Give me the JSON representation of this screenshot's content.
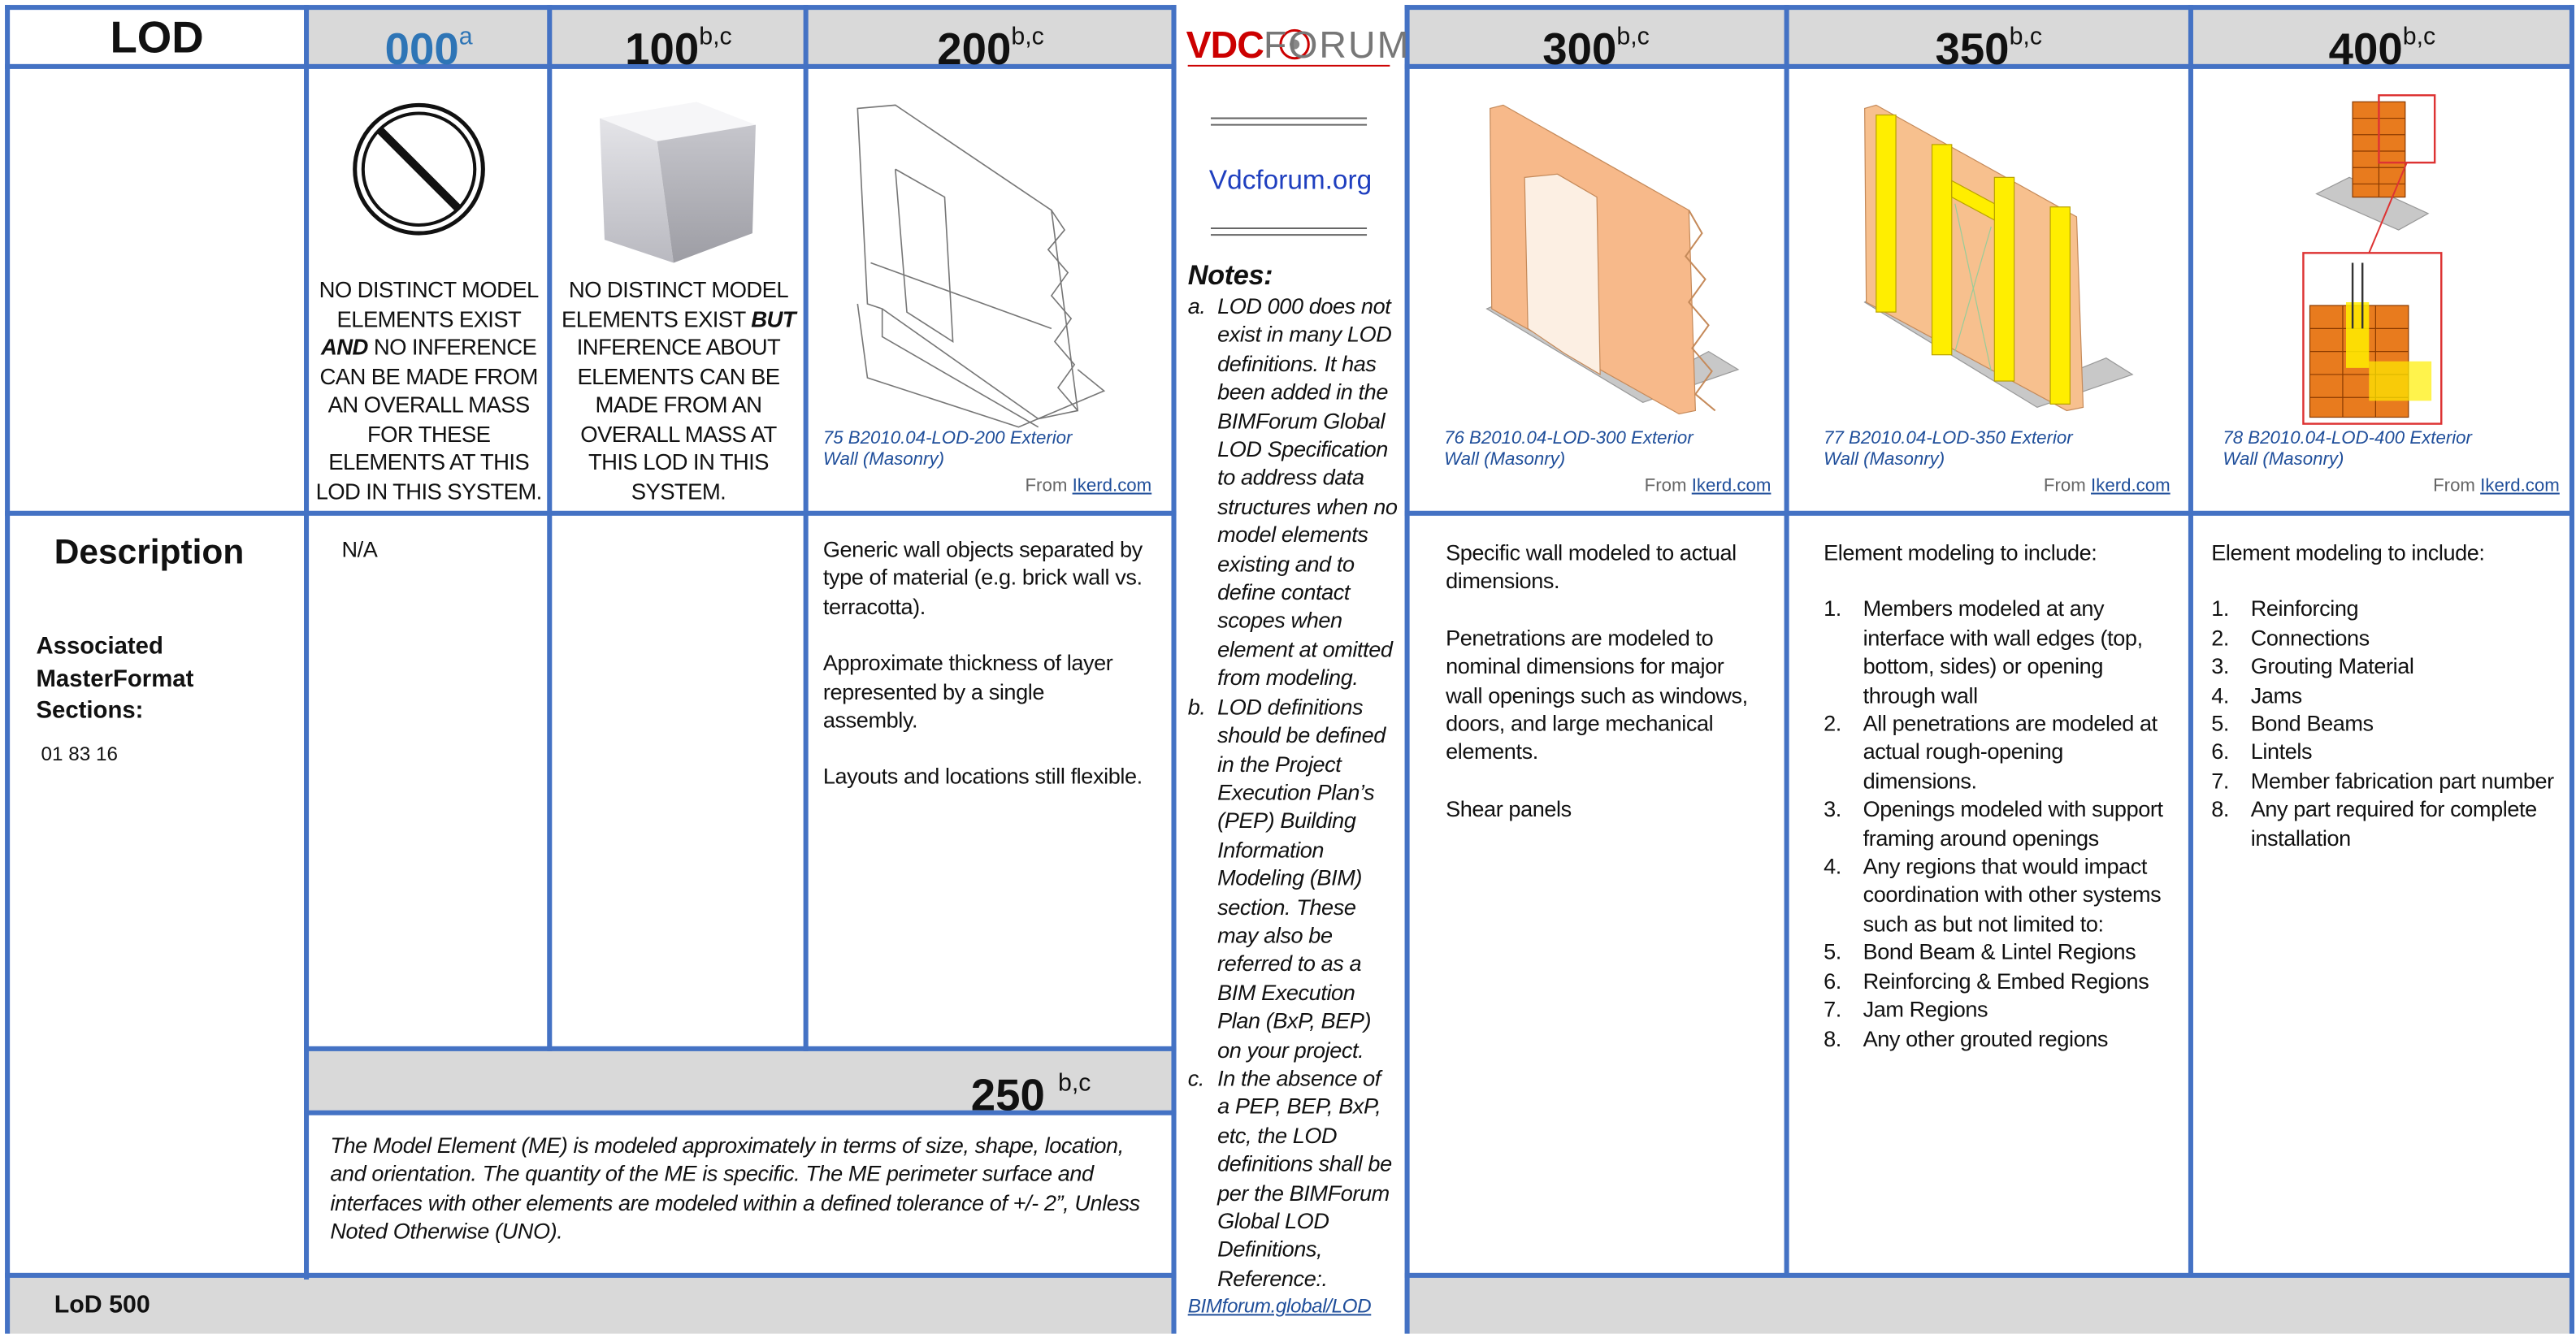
{
  "corner": "LOD",
  "row_labels": {
    "description": "Description",
    "sections_label": "Associated MasterFormat Sections:",
    "sections_value": "01 83 16"
  },
  "levels": [
    {
      "level": "000",
      "sup": "a",
      "summary": {
        "before": "NO DISTINCT MODEL ELEMENTS EXIST",
        "emphasis": "AND",
        "after": "NO INFERENCE CAN BE MADE FROM AN OVERALL MASS FOR THESE ELEMENTS AT THIS LOD IN THIS SYSTEM."
      },
      "description": [
        "N/A"
      ]
    },
    {
      "level": "100",
      "sup": "b,c",
      "summary": {
        "before": "NO DISTINCT MODEL ELEMENTS EXIST",
        "emphasis": "BUT",
        "after": "INFERENCE ABOUT ELEMENTS CAN BE MADE FROM AN OVERALL MASS AT THIS LOD IN THIS SYSTEM."
      }
    },
    {
      "level": "200",
      "sup": "b,c",
      "caption": "75 B2010.04-LOD-200 Exterior Wall (Masonry)",
      "source": "From",
      "source_link": "Ikerd.com",
      "description": [
        "Generic wall objects separated by type of material (e.g. brick wall vs. terracotta).",
        "Approximate thickness of layer represented by a single assembly.",
        "Layouts and locations still flexible."
      ]
    },
    {
      "level": "250",
      "sup": "b,c",
      "description": "The Model Element (ME) is modeled approximately in terms of size, shape, location, and orientation. The quantity of the ME is specific. The ME perimeter surface and interfaces with other elements are modeled within a defined tolerance of +/- 2”, Unless Noted Otherwise (UNO)."
    },
    {
      "level": "300",
      "sup": "b,c",
      "caption": "76 B2010.04-LOD-300 Exterior Wall (Masonry)",
      "source": "From",
      "source_link": "Ikerd.com",
      "description": [
        "Specific wall modeled to actual dimensions.",
        "Penetrations are modeled to nominal dimensions for major wall openings such as windows, doors, and large mechanical elements.",
        "Shear panels"
      ]
    },
    {
      "level": "350",
      "sup": "b,c",
      "caption": "77 B2010.04-LOD-350 Exterior Wall (Masonry)",
      "source": "From",
      "source_link": "Ikerd.com",
      "intro": "Element modeling to include:",
      "items": [
        {
          "num": "1.",
          "text": "Members modeled at any interface with wall edges (top, bottom, sides) or opening through wall"
        },
        {
          "num": "2.",
          "text": "All penetrations are modeled at actual rough-opening dimensions."
        },
        {
          "num": "3.",
          "text": "Openings modeled with support framing around openings"
        },
        {
          "num": "4.",
          "text": "Any regions that would impact coordination with other systems such as but not limited to:"
        },
        {
          "num": "5.",
          "text": "Bond Beam & Lintel Regions"
        },
        {
          "num": "6.",
          "text": "Reinforcing & Embed Regions"
        },
        {
          "num": "7.",
          "text": "Jam Regions"
        },
        {
          "num": "8.",
          "text": "Any other grouted regions"
        }
      ]
    },
    {
      "level": "400",
      "sup": "b,c",
      "caption": "78 B2010.04-LOD-400 Exterior Wall (Masonry)",
      "source": "From",
      "source_link": "Ikerd.com",
      "intro": "Element modeling to include:",
      "items": [
        {
          "num": "1.",
          "text": "Reinforcing"
        },
        {
          "num": "2.",
          "text": "Connections"
        },
        {
          "num": "3.",
          "text": "Grouting Material"
        },
        {
          "num": "4.",
          "text": "Jams"
        },
        {
          "num": "5.",
          "text": "Bond Beams"
        },
        {
          "num": "6.",
          "text": "Lintels"
        },
        {
          "num": "7.",
          "text": "Member fabrication part number"
        },
        {
          "num": "8.",
          "text": "Any part required for complete installation"
        }
      ]
    }
  ],
  "lod500": "LoD 500",
  "logo": {
    "left": "VDC",
    "right": "FORUM"
  },
  "site_link": "Vdcforum.org",
  "notes": {
    "title": "Notes:",
    "items": [
      {
        "marker": "a.",
        "text": "LOD 000 does not exist in many LOD definitions. It has been added in the BIMForum Global LOD Specification to address data structures when no model elements existing and to define contact scopes when element at omitted from modeling."
      },
      {
        "marker": "b.",
        "text": "LOD definitions should be defined in the Project Execution Plan’s (PEP) Building Information Modeling (BIM) section. These may also be referred to as a BIM Execution Plan (BxP, BEP) on your project."
      },
      {
        "marker": "c.",
        "text": "In the absence of a PEP, BEP, BxP, etc, the LOD definitions shall be per the BIMForum Global LOD Definitions, Reference:."
      }
    ],
    "link": "BIMforum.global/LOD"
  }
}
